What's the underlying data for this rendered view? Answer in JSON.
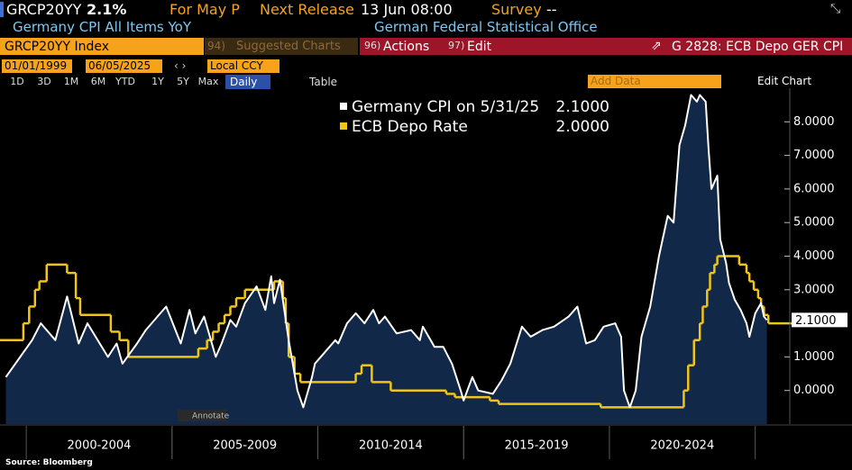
{
  "header": {
    "ticker": "GRCP20YY",
    "value": "2.1%",
    "for": "For May P",
    "next_release_label": "Next Release",
    "next_release": "13 Jun 08:00",
    "survey_label": "Survey",
    "survey": "--",
    "description": "Germany CPI All Items YoY",
    "source_org": "German Federal Statistical Office"
  },
  "toolbar": {
    "security": "GRCP20YY Index",
    "suggested_num": "94)",
    "suggested": "Suggested Charts",
    "actions_num": "96)",
    "actions": "Actions",
    "edit_num": "97)",
    "edit": "Edit",
    "chart_name": "G 2828: ECB Depo GER CPI"
  },
  "date_bar": {
    "start": "01/01/1999",
    "end": "06/05/2025",
    "currency": "Local CCY",
    "add_data": "Add Data",
    "edit_chart": "Edit Chart"
  },
  "periods": [
    "1D",
    "3D",
    "1M",
    "6M",
    "YTD",
    "1Y",
    "5Y",
    "Max"
  ],
  "frequency": "Daily",
  "table": "Table",
  "annotate": "Annotate",
  "footer": "Source: Bloomberg",
  "chart_data": {
    "type": "line",
    "xlim": [
      1999.1,
      2026.0
    ],
    "xticks": [
      {
        "value": 2002.5,
        "label": "2000-2004"
      },
      {
        "value": 2007.5,
        "label": "2005-2009"
      },
      {
        "value": 2012.5,
        "label": "2010-2014"
      },
      {
        "value": 2017.5,
        "label": "2015-2019"
      },
      {
        "value": 2022.5,
        "label": "2020-2024"
      }
    ],
    "ylim": [
      -1,
      9
    ],
    "yticks": [
      {
        "value": 0,
        "label": "0.0000"
      },
      {
        "value": 1,
        "label": "1.0000"
      },
      {
        "value": 2,
        "label": "2.0000"
      },
      {
        "value": 3,
        "label": "3.0000"
      },
      {
        "value": 4,
        "label": "4.0000"
      },
      {
        "value": 5,
        "label": "5.0000"
      },
      {
        "value": 6,
        "label": "6.0000"
      },
      {
        "value": 7,
        "label": "7.0000"
      },
      {
        "value": 8,
        "label": "8.0000"
      }
    ],
    "series": [
      {
        "name": "Germany CPI on 5/31/25",
        "legend_value": "2.1000",
        "color": "#ffffff",
        "fill": "#112848",
        "x": [
          1999.3,
          2000.2,
          2000.5,
          2001.0,
          2001.4,
          2001.8,
          2002.1,
          2002.8,
          2003.1,
          2003.3,
          2003.8,
          2004.1,
          2004.5,
          2004.8,
          2005.3,
          2005.6,
          2005.8,
          2006.1,
          2006.5,
          2006.7,
          2007.0,
          2007.2,
          2007.5,
          2007.9,
          2008.2,
          2008.4,
          2008.5,
          2008.7,
          2009.0,
          2009.3,
          2009.5,
          2009.8,
          2009.9,
          2010.2,
          2010.6,
          2010.7,
          2011.0,
          2011.3,
          2011.6,
          2011.9,
          2012.1,
          2012.3,
          2012.7,
          2013.2,
          2013.5,
          2013.6,
          2014.0,
          2014.3,
          2014.6,
          2014.9,
          2015.0,
          2015.3,
          2015.5,
          2016.0,
          2016.3,
          2016.6,
          2017.0,
          2017.3,
          2017.7,
          2018.1,
          2018.6,
          2018.9,
          2019.2,
          2019.5,
          2019.8,
          2020.2,
          2020.4,
          2020.5,
          2020.7,
          2020.9,
          2021.1,
          2021.4,
          2021.7,
          2022.0,
          2022.2,
          2022.4,
          2022.6,
          2022.8,
          2023.0,
          2023.1,
          2023.3,
          2023.4,
          2023.5,
          2023.7,
          2023.8,
          2024.0,
          2024.1,
          2024.3,
          2024.5,
          2024.7,
          2024.8,
          2025.0,
          2025.2,
          2025.3,
          2025.4
        ],
        "values": [
          0.4,
          1.5,
          2.0,
          1.5,
          2.8,
          1.4,
          2.0,
          1.0,
          1.4,
          0.8,
          1.4,
          1.8,
          2.2,
          2.5,
          1.4,
          2.4,
          1.7,
          2.2,
          1.0,
          1.4,
          2.1,
          1.9,
          2.6,
          3.1,
          2.4,
          3.4,
          2.6,
          3.3,
          1.5,
          0.0,
          -0.5,
          0.4,
          0.8,
          1.1,
          1.5,
          1.4,
          2.0,
          2.3,
          2.0,
          2.4,
          2.0,
          2.2,
          1.7,
          1.8,
          1.5,
          1.9,
          1.3,
          1.3,
          0.8,
          0.0,
          -0.3,
          0.4,
          0.0,
          -0.1,
          0.3,
          0.8,
          1.9,
          1.6,
          1.8,
          1.9,
          2.2,
          2.5,
          1.4,
          1.5,
          1.9,
          2.0,
          1.6,
          0.0,
          -0.5,
          0.0,
          1.6,
          2.5,
          4.0,
          5.2,
          5.0,
          7.3,
          7.9,
          8.8,
          8.6,
          8.8,
          8.6,
          7.2,
          6.0,
          6.4,
          4.5,
          3.8,
          3.2,
          2.7,
          2.4,
          2.0,
          1.6,
          2.3,
          2.6,
          2.2,
          2.1
        ]
      },
      {
        "name": "ECB Depo Rate",
        "legend_value": "2.0000",
        "color": "#f0c419",
        "step": true,
        "x": [
          1999.1,
          1999.9,
          2000.1,
          2000.3,
          2000.45,
          2000.7,
          2001.4,
          2001.7,
          2001.85,
          2002.9,
          2003.2,
          2003.5,
          2005.9,
          2006.2,
          2006.4,
          2006.6,
          2006.8,
          2007.0,
          2007.2,
          2007.5,
          2008.5,
          2008.8,
          2008.9,
          2009.0,
          2009.2,
          2009.4,
          2011.3,
          2011.5,
          2011.85,
          2012.5,
          2014.4,
          2014.7,
          2015.9,
          2016.2,
          2019.7,
          2022.55,
          2022.7,
          2022.9,
          2023.1,
          2023.2,
          2023.35,
          2023.45,
          2023.6,
          2023.7,
          2024.45,
          2024.7,
          2024.8,
          2024.95,
          2025.1,
          2025.2,
          2025.3,
          2025.45
        ],
        "values": [
          1.5,
          2.0,
          2.5,
          3.0,
          3.25,
          3.75,
          3.5,
          2.75,
          2.25,
          1.75,
          1.5,
          1.0,
          1.25,
          1.5,
          1.75,
          2.0,
          2.25,
          2.5,
          2.75,
          3.0,
          3.25,
          2.75,
          2.0,
          1.0,
          0.5,
          0.25,
          0.5,
          0.75,
          0.25,
          0.0,
          -0.1,
          -0.2,
          -0.3,
          -0.4,
          -0.5,
          0.0,
          0.75,
          1.5,
          2.0,
          2.5,
          3.0,
          3.5,
          3.75,
          4.0,
          3.75,
          3.5,
          3.25,
          3.0,
          2.75,
          2.5,
          2.25,
          2.0
        ]
      }
    ]
  }
}
